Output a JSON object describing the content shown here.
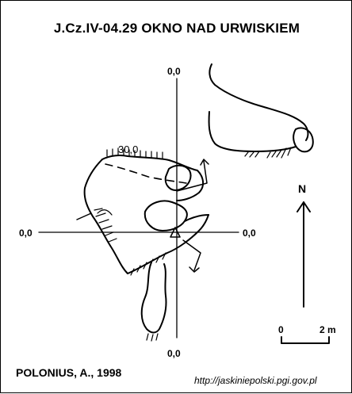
{
  "title": "J.Cz.IV-04.29  OKNO NAD URWISKIEM",
  "labels": {
    "top": "0,0",
    "left": "0,0",
    "right": "0,0",
    "bottom": "0,0",
    "elevation": "30,0",
    "north": "N",
    "scale_start": "0",
    "scale_end": "2 m"
  },
  "author": "POLONIUS, A., 1998",
  "url": "http://jaskiniepolski.pgi.gov.pl"
}
